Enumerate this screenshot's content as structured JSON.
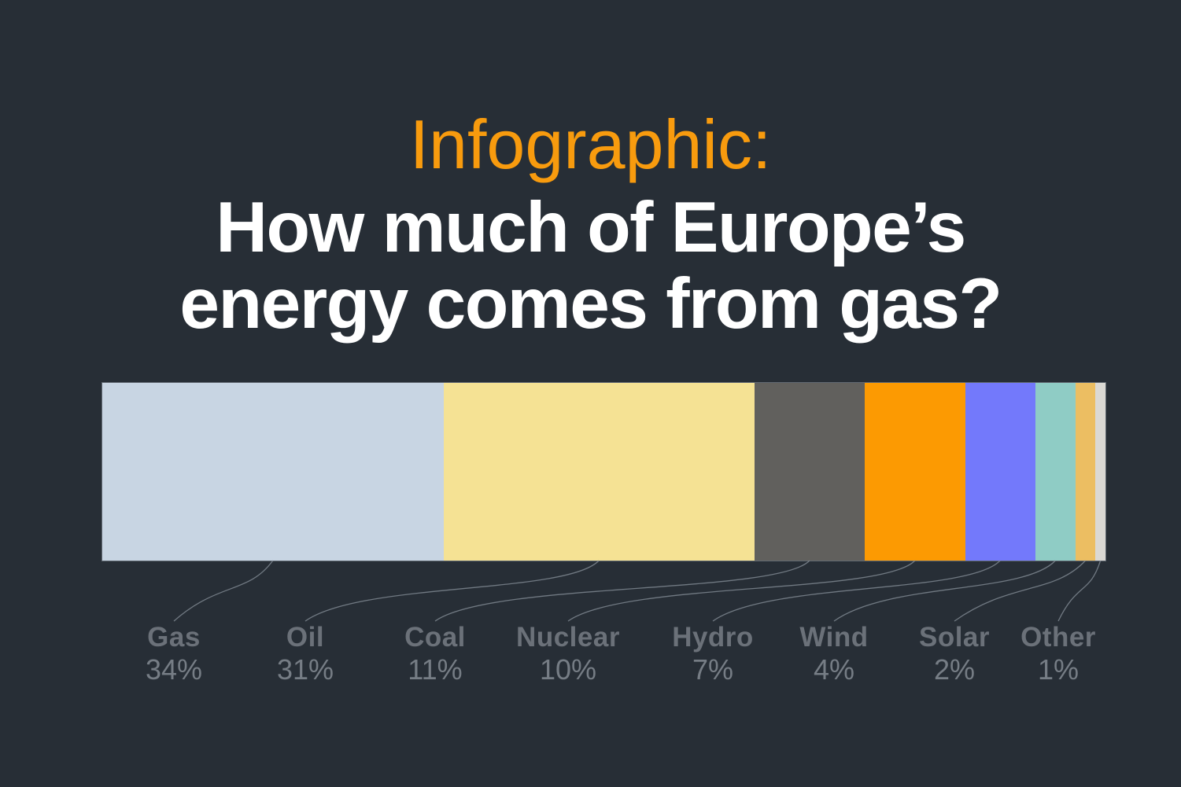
{
  "background_color": "#272E36",
  "header": {
    "eyebrow": "Infographic:",
    "eyebrow_color": "#F89B0E",
    "title_line1": "How much of Europe’s",
    "title_line2": "energy comes from gas?",
    "title_color": "#FFFFFF"
  },
  "chart_data": {
    "type": "bar",
    "variant": "horizontal-stacked-100-percent",
    "title": "How much of Europe’s energy comes from gas?",
    "categories": [
      "Gas",
      "Oil",
      "Coal",
      "Nuclear",
      "Hydro",
      "Wind",
      "Solar",
      "Other"
    ],
    "values": [
      34,
      31,
      11,
      10,
      7,
      4,
      2,
      1
    ],
    "unit": "%",
    "value_labels": [
      "34%",
      "31%",
      "11%",
      "10%",
      "7%",
      "4%",
      "2%",
      "1%"
    ],
    "segment_colors": [
      "#C8D5E3",
      "#F5E294",
      "#61605D",
      "#FC9A02",
      "#7379FB",
      "#8FCCC5",
      "#ECBE62",
      "#DBD9D4"
    ],
    "legend_position": "below chart, connected by curved leader lines",
    "grid": false,
    "label_name_color": "#6B7179",
    "label_value_color": "#767D85",
    "leader_line_color": "#7E868F"
  }
}
